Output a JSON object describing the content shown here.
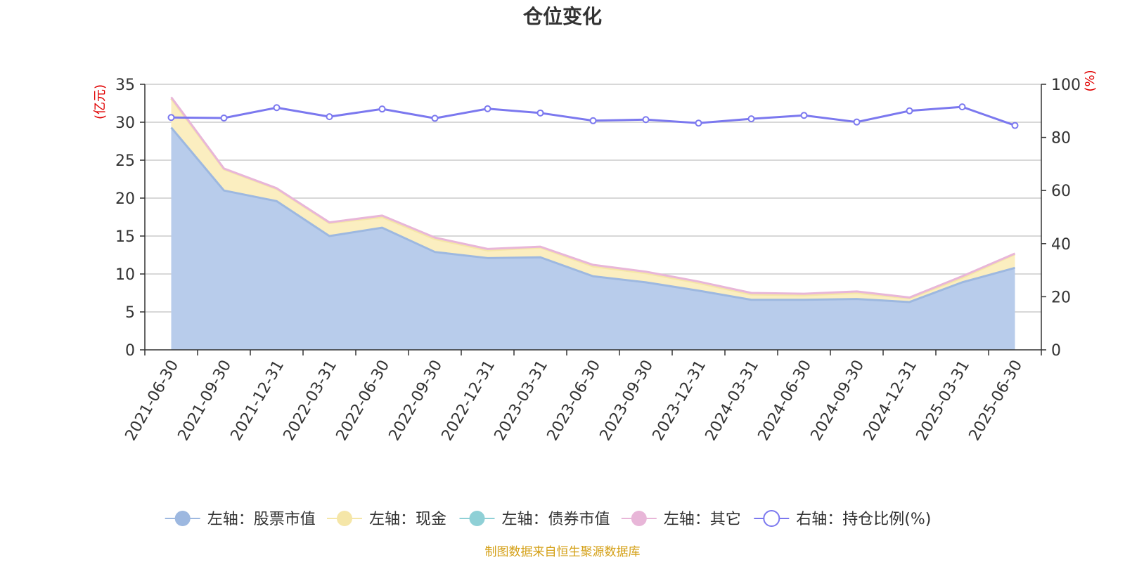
{
  "chart_data": {
    "type": "area",
    "title": "仓位变化",
    "left_unit": "(亿元)",
    "right_unit": "(%)",
    "x": [
      "2021-06-30",
      "2021-09-30",
      "2021-12-31",
      "2022-03-31",
      "2022-06-30",
      "2022-09-30",
      "2022-12-31",
      "2023-03-31",
      "2023-06-30",
      "2023-09-30",
      "2023-12-31",
      "2024-03-31",
      "2024-06-30",
      "2024-09-30",
      "2024-12-31",
      "2025-03-31",
      "2025-06-30"
    ],
    "left_axis": {
      "min": 0,
      "max": 35,
      "ticks": [
        0,
        5,
        10,
        15,
        20,
        25,
        30,
        35
      ]
    },
    "right_axis": {
      "min": 0,
      "max": 100,
      "ticks": [
        0,
        20,
        40,
        60,
        80,
        100
      ]
    },
    "series": [
      {
        "name": "左轴：股票市值",
        "axis": "left",
        "stack": true,
        "color": "#9db8e0",
        "fill": "#b8cceb",
        "values": [
          29.3,
          21.0,
          19.6,
          15.0,
          16.1,
          12.9,
          12.1,
          12.2,
          9.7,
          8.9,
          7.8,
          6.6,
          6.6,
          6.7,
          6.3,
          8.9,
          10.8
        ]
      },
      {
        "name": "左轴：现金",
        "axis": "left",
        "stack": true,
        "color": "#f5e6a8",
        "fill": "#fbeec0",
        "values": [
          3.8,
          2.8,
          1.6,
          1.7,
          1.4,
          1.7,
          1.0,
          1.3,
          1.3,
          1.2,
          1.0,
          0.7,
          0.6,
          0.8,
          0.5,
          0.6,
          1.8
        ]
      },
      {
        "name": "左轴：债券市值",
        "axis": "left",
        "stack": true,
        "color": "#8fd0d6",
        "fill": "#a8dde1",
        "values": [
          0,
          0,
          0,
          0,
          0,
          0,
          0,
          0,
          0,
          0,
          0,
          0,
          0,
          0,
          0,
          0,
          0
        ]
      },
      {
        "name": "左轴：其它",
        "axis": "left",
        "stack": true,
        "color": "#e8b6d8",
        "fill": "#f1cde6",
        "values": [
          0.2,
          0.1,
          0.1,
          0.1,
          0.2,
          0.2,
          0.2,
          0.1,
          0.2,
          0.2,
          0.2,
          0.2,
          0.2,
          0.2,
          0.1,
          0.2,
          0.1
        ]
      },
      {
        "name": "右轴：持仓比例(%)",
        "axis": "right",
        "stack": false,
        "color": "#7b78ef",
        "marker": "hollow-circle",
        "values": [
          87.5,
          87.3,
          91.2,
          87.8,
          90.7,
          87.2,
          90.8,
          89.2,
          86.3,
          86.7,
          85.4,
          87.0,
          88.3,
          85.8,
          90.0,
          91.5,
          84.5
        ]
      }
    ],
    "legend_position": "bottom",
    "grid": true,
    "source": "制图数据来自恒生聚源数据库"
  },
  "colors": {
    "axis": "#333333",
    "grid": "#cccccc",
    "unit_text": "#e00000",
    "source_text": "#d4a017"
  }
}
